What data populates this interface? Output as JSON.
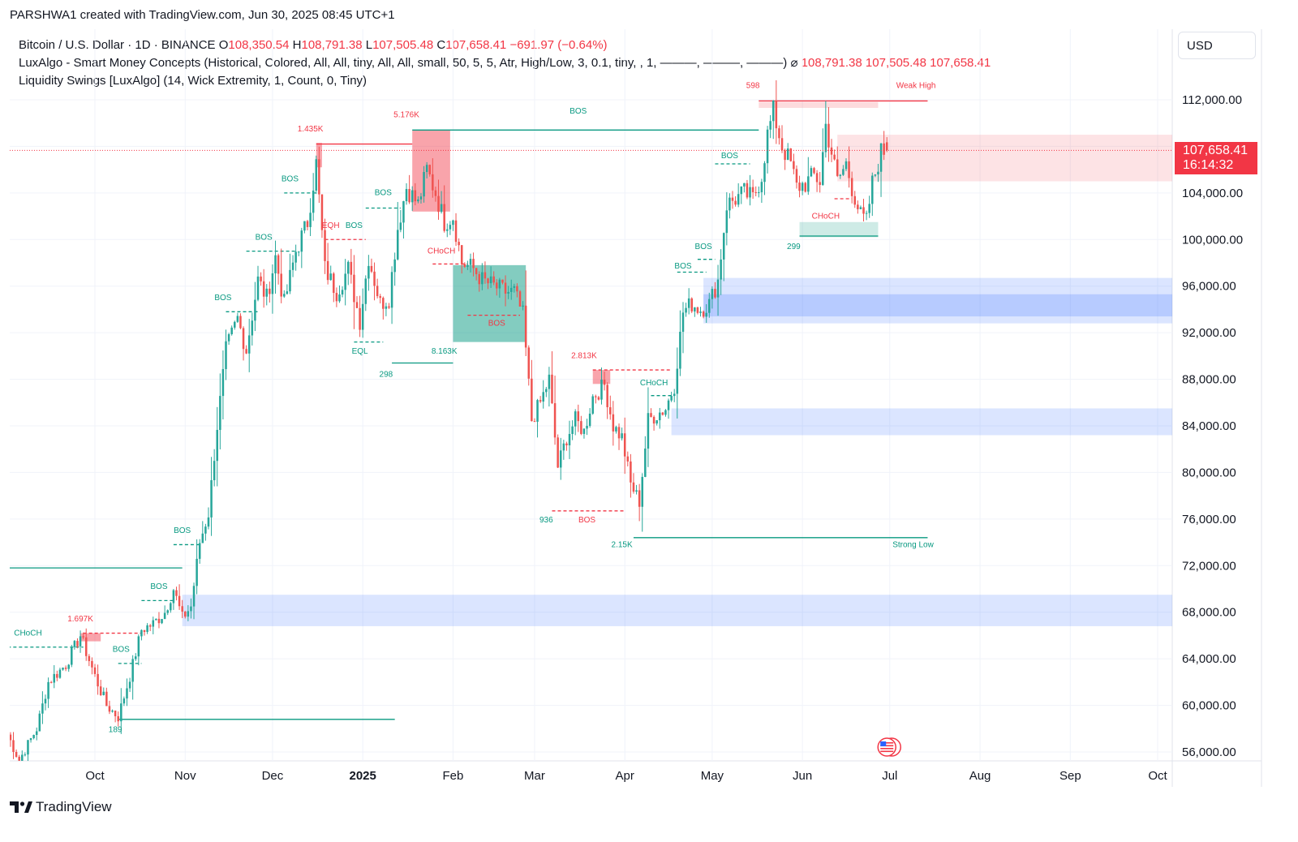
{
  "header": {
    "text": "PARSHWA1 created with TradingView.com, Jun 30, 2025 08:45 UTC+1"
  },
  "legend": {
    "symbol": "Bitcoin / U.S. Dollar · 1D · BINANCE",
    "o_label": "O",
    "o_value": "108,350.54",
    "h_label": "H",
    "h_value": "108,791.38",
    "l_label": "L",
    "l_value": "107,505.48",
    "c_label": "C",
    "c_value": "107,658.41",
    "change": "−691.97 (−0.64%)",
    "indicator1": "LuxAlgo - Smart Money Concepts (Historical, Colored, All, All, tiny, All, All, small, 50, 5, 5, Atr, High/Low, 3, 0.1, tiny, , 1, ———, ———, ———)",
    "indicator1_eye": "⌀",
    "indicator1_values": "108,791.38  107,505.48  107,658.41",
    "indicator2": "Liquidity Swings [LuxAlgo] (14, Wick Extremity, 1, Count, 0, Tiny)"
  },
  "currency": "USD",
  "price_tag": {
    "price": "107,658.41",
    "countdown": "16:14:32"
  },
  "brand": "TradingView",
  "colors": {
    "up": "#26a69a",
    "down": "#ef5350",
    "bull_zone": "#2962ff",
    "bear_zone": "#f23645",
    "teal": "#089981"
  },
  "chart_data": {
    "type": "candlestick",
    "symbol": "BTCUSD",
    "interval": "1D",
    "ylim": [
      55200,
      115000
    ],
    "y_ticks": [
      56000,
      60000,
      64000,
      68000,
      72000,
      76000,
      80000,
      84000,
      88000,
      92000,
      96000,
      100000,
      104000,
      108000,
      112000
    ],
    "y_tick_labels": [
      "56,000.00",
      "60,000.00",
      "64,000.00",
      "68,000.00",
      "72,000.00",
      "76,000.00",
      "80,000.00",
      "84,000.00",
      "88,000.00",
      "92,000.00",
      "96,000.00",
      "100,000.00",
      "104,000.00",
      "108,000.00",
      "112,000.00"
    ],
    "x_ticks": [
      {
        "label": "Oct",
        "day": 30
      },
      {
        "label": "Nov",
        "day": 61
      },
      {
        "label": "Dec",
        "day": 91
      },
      {
        "label": "2025",
        "day": 122
      },
      {
        "label": "Feb",
        "day": 153
      },
      {
        "label": "Mar",
        "day": 181
      },
      {
        "label": "Apr",
        "day": 212
      },
      {
        "label": "May",
        "day": 242
      },
      {
        "label": "Jun",
        "day": 273
      },
      {
        "label": "Jul",
        "day": 303
      },
      {
        "label": "Aug",
        "day": 334
      },
      {
        "label": "Sep",
        "day": 365
      },
      {
        "label": "Oct",
        "day": 395
      }
    ],
    "last_day": 302,
    "anchors": [
      [
        0,
        57500
      ],
      [
        4,
        55300
      ],
      [
        10,
        58000
      ],
      [
        14,
        62000
      ],
      [
        20,
        63500
      ],
      [
        25,
        66000
      ],
      [
        30,
        62500
      ],
      [
        34,
        60000
      ],
      [
        38,
        59000
      ],
      [
        42,
        62500
      ],
      [
        46,
        66500
      ],
      [
        50,
        67000
      ],
      [
        54,
        68000
      ],
      [
        57,
        70000
      ],
      [
        60,
        67500
      ],
      [
        63,
        68500
      ],
      [
        66,
        74000
      ],
      [
        69,
        76500
      ],
      [
        72,
        84000
      ],
      [
        75,
        90500
      ],
      [
        79,
        93200
      ],
      [
        82,
        90500
      ],
      [
        86,
        96500
      ],
      [
        89,
        95000
      ],
      [
        92,
        98500
      ],
      [
        95,
        94500
      ],
      [
        99,
        99000
      ],
      [
        103,
        101500
      ],
      [
        106,
        106500
      ],
      [
        109,
        97500
      ],
      [
        113,
        95500
      ],
      [
        117,
        97500
      ],
      [
        121,
        93000
      ],
      [
        124,
        98500
      ],
      [
        128,
        94500
      ],
      [
        131,
        95000
      ],
      [
        134,
        101000
      ],
      [
        137,
        104500
      ],
      [
        141,
        103000
      ],
      [
        144,
        106000
      ],
      [
        147,
        104000
      ],
      [
        150,
        101500
      ],
      [
        153,
        102000
      ],
      [
        156,
        98000
      ],
      [
        160,
        97500
      ],
      [
        163,
        96500
      ],
      [
        167,
        96000
      ],
      [
        171,
        95500
      ],
      [
        174,
        95500
      ],
      [
        177,
        93500
      ],
      [
        180,
        84500
      ],
      [
        183,
        86000
      ],
      [
        186,
        88000
      ],
      [
        189,
        80500
      ],
      [
        192,
        83000
      ],
      [
        195,
        84500
      ],
      [
        198,
        83500
      ],
      [
        201,
        86500
      ],
      [
        205,
        87500
      ],
      [
        208,
        84000
      ],
      [
        211,
        83000
      ],
      [
        214,
        79000
      ],
      [
        217,
        77500
      ],
      [
        220,
        84500
      ],
      [
        223,
        85000
      ],
      [
        226,
        85500
      ],
      [
        229,
        87500
      ],
      [
        232,
        93800
      ],
      [
        235,
        94500
      ],
      [
        238,
        94000
      ],
      [
        241,
        94500
      ],
      [
        244,
        96500
      ],
      [
        247,
        103000
      ],
      [
        250,
        103500
      ],
      [
        253,
        104000
      ],
      [
        256,
        103500
      ],
      [
        259,
        105500
      ],
      [
        261,
        109000
      ],
      [
        263,
        111000
      ],
      [
        266,
        108000
      ],
      [
        269,
        106500
      ],
      [
        271,
        104500
      ],
      [
        274,
        104800
      ],
      [
        277,
        105500
      ],
      [
        279,
        105000
      ],
      [
        281,
        109800
      ],
      [
        283,
        107500
      ],
      [
        285,
        105000
      ],
      [
        288,
        106500
      ],
      [
        290,
        104500
      ],
      [
        293,
        102000
      ],
      [
        295,
        101500
      ],
      [
        297,
        104800
      ],
      [
        300,
        107500
      ],
      [
        302,
        107658
      ]
    ],
    "last_ohlc": {
      "open": 108350.54,
      "high": 108791.38,
      "low": 107505.48,
      "close": 107658.41
    },
    "zones": [
      {
        "label": "bull OB",
        "from_day": 60,
        "to_day": 402,
        "top": 69500,
        "bottom": 66800,
        "type": "bull"
      },
      {
        "label": "bull OB",
        "from_day": 228,
        "to_day": 402,
        "top": 85500,
        "bottom": 83200,
        "type": "bull"
      },
      {
        "label": "bull OB",
        "from_day": 239,
        "to_day": 402,
        "top": 96700,
        "bottom": 92800,
        "type": "bull"
      },
      {
        "label": "bull OB inner",
        "from_day": 239,
        "to_day": 402,
        "top": 95300,
        "bottom": 93400,
        "type": "bull_strong"
      },
      {
        "label": "bear zone",
        "from_day": 285,
        "to_day": 402,
        "top": 109000,
        "bottom": 105000,
        "type": "bear"
      },
      {
        "label": "1.697K",
        "from_day": 25,
        "to_day": 32,
        "top": 66200,
        "bottom": 65500,
        "type": "bear_solid"
      },
      {
        "label": "1.435K",
        "from_day": 106,
        "to_day": 108,
        "top": 108300,
        "bottom": 106200,
        "type": "bear_solid"
      },
      {
        "label": "5.176K",
        "from_day": 139,
        "to_day": 152,
        "top": 109400,
        "bottom": 102400,
        "type": "bear_solid"
      },
      {
        "label": "8.163K",
        "from_day": 153,
        "to_day": 178,
        "top": 97800,
        "bottom": 91200,
        "type": "bull_solid"
      },
      {
        "label": "2.813K",
        "from_day": 201,
        "to_day": 207,
        "top": 88800,
        "bottom": 87600,
        "type": "bear_solid"
      },
      {
        "label": "299",
        "from_day": 272,
        "to_day": 299,
        "top": 101500,
        "bottom": 100200,
        "type": "bull_light"
      },
      {
        "label": "weak high",
        "from_day": 258,
        "to_day": 299,
        "top": 111800,
        "bottom": 111300,
        "type": "bear_light"
      }
    ],
    "lines": [
      {
        "day1": 0,
        "day2": 60,
        "price": 71800,
        "color": "#089981",
        "dash": false
      },
      {
        "day1": 38,
        "day2": 133,
        "price": 58800,
        "color": "#089981",
        "dash": false
      },
      {
        "day1": 106,
        "day2": 139,
        "price": 108200,
        "color": "#f23645",
        "dash": false
      },
      {
        "day1": 139,
        "day2": 258,
        "price": 109400,
        "color": "#089981",
        "dash": false
      },
      {
        "day1": 258,
        "day2": 316,
        "price": 111900,
        "color": "#f23645",
        "dash": false
      },
      {
        "day1": 215,
        "day2": 316,
        "price": 74400,
        "color": "#089981",
        "dash": false
      },
      {
        "day1": 132,
        "day2": 153,
        "price": 89400,
        "color": "#089981",
        "dash": false
      },
      {
        "day1": 272,
        "day2": 299,
        "price": 100300,
        "color": "#089981",
        "dash": false
      },
      {
        "day1": 0,
        "day2": 26,
        "price": 65000,
        "color": "#089981",
        "dash": true
      },
      {
        "day1": 26,
        "day2": 46,
        "price": 66200,
        "color": "#f23645",
        "dash": true
      },
      {
        "day1": 38,
        "day2": 46,
        "price": 63600,
        "color": "#089981",
        "dash": true
      },
      {
        "day1": 46,
        "day2": 57,
        "price": 69000,
        "color": "#089981",
        "dash": true
      },
      {
        "day1": 57,
        "day2": 66,
        "price": 73800,
        "color": "#089981",
        "dash": true
      },
      {
        "day1": 75,
        "day2": 86,
        "price": 93800,
        "color": "#089981",
        "dash": true
      },
      {
        "day1": 82,
        "day2": 99,
        "price": 99000,
        "color": "#089981",
        "dash": true
      },
      {
        "day1": 95,
        "day2": 106,
        "price": 104000,
        "color": "#089981",
        "dash": true
      },
      {
        "day1": 109,
        "day2": 123,
        "price": 100000,
        "color": "#f23645",
        "dash": true
      },
      {
        "day1": 119,
        "day2": 129,
        "price": 91200,
        "color": "#089981",
        "dash": true
      },
      {
        "day1": 123,
        "day2": 135,
        "price": 102700,
        "color": "#089981",
        "dash": true
      },
      {
        "day1": 146,
        "day2": 158,
        "price": 97900,
        "color": "#f23645",
        "dash": true
      },
      {
        "day1": 158,
        "day2": 176,
        "price": 93500,
        "color": "#f23645",
        "dash": true
      },
      {
        "day1": 187,
        "day2": 212,
        "price": 76700,
        "color": "#f23645",
        "dash": true
      },
      {
        "day1": 201,
        "day2": 228,
        "price": 88800,
        "color": "#f23645",
        "dash": true
      },
      {
        "day1": 221,
        "day2": 229,
        "price": 86600,
        "color": "#089981",
        "dash": true
      },
      {
        "day1": 230,
        "day2": 240,
        "price": 97200,
        "color": "#089981",
        "dash": true
      },
      {
        "day1": 237,
        "day2": 243,
        "price": 98300,
        "color": "#089981",
        "dash": true
      },
      {
        "day1": 243,
        "day2": 255,
        "price": 106500,
        "color": "#089981",
        "dash": true
      },
      {
        "day1": 284,
        "day2": 290,
        "price": 103500,
        "color": "#f23645",
        "dash": true
      }
    ],
    "labels": [
      {
        "text": "CHoCH",
        "day": 7,
        "price": 66000,
        "color": "#089981"
      },
      {
        "text": "1.697K",
        "day": 25,
        "price": 67200,
        "color": "#f23645"
      },
      {
        "text": "BOS",
        "day": 39,
        "price": 64600,
        "color": "#089981"
      },
      {
        "text": "189",
        "day": 37,
        "price": 57700,
        "color": "#089981"
      },
      {
        "text": "BOS",
        "day": 52,
        "price": 70000,
        "color": "#089981"
      },
      {
        "text": "BOS",
        "day": 60,
        "price": 74800,
        "color": "#089981"
      },
      {
        "text": "BOS",
        "day": 74,
        "price": 94800,
        "color": "#089981"
      },
      {
        "text": "BOS",
        "day": 88,
        "price": 100000,
        "color": "#089981"
      },
      {
        "text": "BOS",
        "day": 97,
        "price": 105000,
        "color": "#089981"
      },
      {
        "text": "1.435K",
        "day": 104,
        "price": 109300,
        "color": "#f23645"
      },
      {
        "text": "EQH",
        "day": 111,
        "price": 101000,
        "color": "#f23645"
      },
      {
        "text": "BOS",
        "day": 119,
        "price": 101000,
        "color": "#089981"
      },
      {
        "text": "EQL",
        "day": 121,
        "price": 90200,
        "color": "#089981"
      },
      {
        "text": "298",
        "day": 130,
        "price": 88200,
        "color": "#089981"
      },
      {
        "text": "BOS",
        "day": 129,
        "price": 103800,
        "color": "#089981"
      },
      {
        "text": "5.176K",
        "day": 137,
        "price": 110500,
        "color": "#f23645"
      },
      {
        "text": "BOS",
        "day": 196,
        "price": 110800,
        "color": "#089981"
      },
      {
        "text": "CHoCH",
        "day": 149,
        "price": 98800,
        "color": "#f23645"
      },
      {
        "text": "BOS",
        "day": 168,
        "price": 92600,
        "color": "#f23645"
      },
      {
        "text": "8.163K",
        "day": 150,
        "price": 90200,
        "color": "#089981"
      },
      {
        "text": "2.813K",
        "day": 198,
        "price": 89800,
        "color": "#f23645"
      },
      {
        "text": "936",
        "day": 185,
        "price": 75700,
        "color": "#089981"
      },
      {
        "text": "BOS",
        "day": 199,
        "price": 75700,
        "color": "#f23645"
      },
      {
        "text": "2.15K",
        "day": 211,
        "price": 73600,
        "color": "#089981"
      },
      {
        "text": "Strong Low",
        "day": 311,
        "price": 73600,
        "color": "#089981"
      },
      {
        "text": "CHoCH",
        "day": 222,
        "price": 87500,
        "color": "#089981"
      },
      {
        "text": "BOS",
        "day": 232,
        "price": 97500,
        "color": "#089981"
      },
      {
        "text": "BOS",
        "day": 239,
        "price": 99200,
        "color": "#089981"
      },
      {
        "text": "BOS",
        "day": 248,
        "price": 107000,
        "color": "#089981"
      },
      {
        "text": "598",
        "day": 256,
        "price": 113000,
        "color": "#f23645"
      },
      {
        "text": "Weak High",
        "day": 312,
        "price": 113000,
        "color": "#f23645"
      },
      {
        "text": "299",
        "day": 270,
        "price": 99200,
        "color": "#089981"
      },
      {
        "text": "CHoCH",
        "day": 281,
        "price": 101800,
        "color": "#f23645"
      }
    ]
  }
}
